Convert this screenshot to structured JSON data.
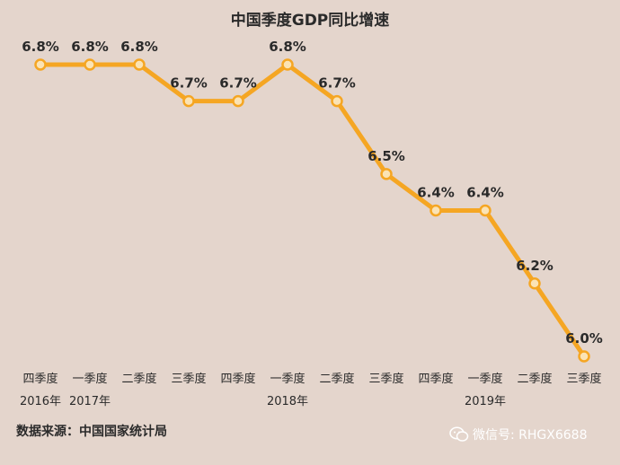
{
  "chart_data": {
    "type": "line",
    "title": "中国季度GDP同比增速",
    "categories": [
      "四季度",
      "一季度",
      "二季度",
      "三季度",
      "四季度",
      "一季度",
      "二季度",
      "三季度",
      "四季度",
      "一季度",
      "二季度",
      "三季度"
    ],
    "year_labels": [
      {
        "category_index": 0,
        "text": "2016年"
      },
      {
        "category_index": 1,
        "text": "2017年"
      },
      {
        "category_index": 5,
        "text": "2018年"
      },
      {
        "category_index": 9,
        "text": "2019年"
      }
    ],
    "series": [
      {
        "values": [
          6.8,
          6.8,
          6.8,
          6.7,
          6.7,
          6.8,
          6.7,
          6.5,
          6.4,
          6.4,
          6.2,
          6.0
        ],
        "labels": [
          "6.8%",
          "6.8%",
          "6.8%",
          "6.7%",
          "6.7%",
          "6.8%",
          "6.7%",
          "6.5%",
          "6.4%",
          "6.4%",
          "6.2%",
          "6.0%"
        ],
        "color": "#f5a623"
      }
    ],
    "ylim": [
      6.0,
      6.8
    ],
    "grid": false,
    "legend": "none"
  },
  "source": "数据来源：中国国家统计局",
  "watermark": "微信号: RHGX6688",
  "colors": {
    "background": "#e4d5cc",
    "line": "#f5a623",
    "marker_fill": "#fbe3b4",
    "text": "#2a2a2a",
    "watermark": "#ffffff"
  }
}
